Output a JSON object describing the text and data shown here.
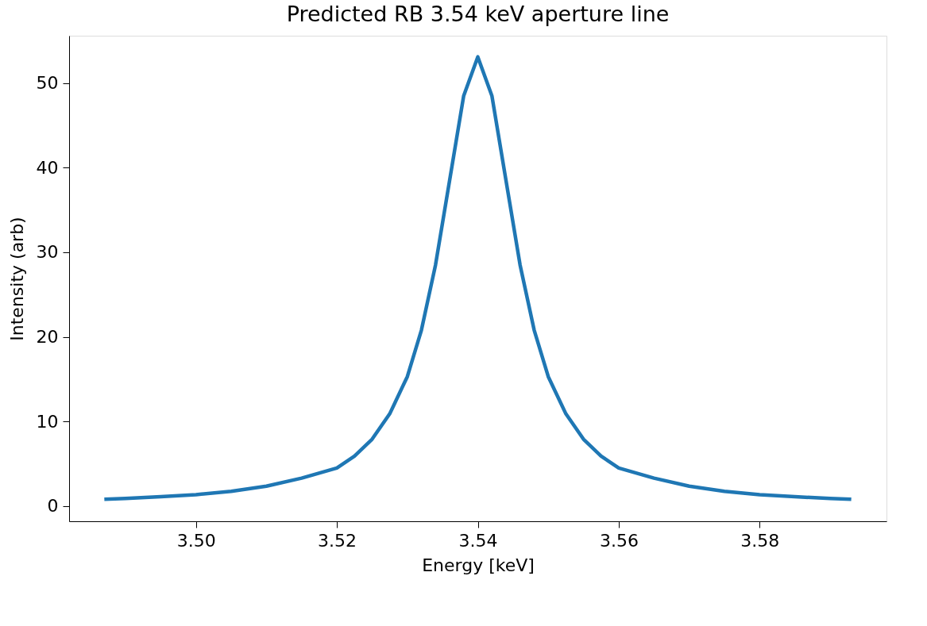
{
  "chart_data": {
    "type": "line",
    "title": "Predicted RB 3.54 keV aperture line",
    "xlabel": "Energy [keV]",
    "ylabel": "Intensity (arb)",
    "x": [
      3.487,
      3.49,
      3.495,
      3.5,
      3.505,
      3.51,
      3.515,
      3.52,
      3.5225,
      3.525,
      3.5275,
      3.53,
      3.532,
      3.534,
      3.536,
      3.538,
      3.54,
      3.542,
      3.544,
      3.546,
      3.548,
      3.55,
      3.5525,
      3.555,
      3.5575,
      3.56,
      3.565,
      3.57,
      3.575,
      3.58,
      3.585,
      3.59,
      3.593
    ],
    "series": [
      {
        "color": "#1f77b4",
        "values": [
          0.8,
          0.9,
          1.1,
          1.35,
          1.75,
          2.35,
          3.3,
          4.5,
          5.9,
          7.9,
          10.9,
          15.3,
          20.8,
          28.5,
          38.5,
          48.5,
          53.1,
          48.5,
          38.5,
          28.5,
          20.8,
          15.3,
          10.9,
          7.9,
          5.9,
          4.5,
          3.3,
          2.35,
          1.75,
          1.35,
          1.1,
          0.9,
          0.8
        ]
      }
    ],
    "xlim": [
      3.482,
      3.598
    ],
    "xticks": [
      {
        "value": 3.5,
        "label": "3.50"
      },
      {
        "value": 3.52,
        "label": "3.52"
      },
      {
        "value": 3.54,
        "label": "3.54"
      },
      {
        "value": 3.56,
        "label": "3.56"
      },
      {
        "value": 3.58,
        "label": "3.58"
      }
    ],
    "ylim": [
      -1.8,
      55.6
    ],
    "yticks": [
      0,
      10,
      20,
      30,
      40,
      50
    ],
    "grid": false,
    "marker": "none",
    "line_style": "solid"
  }
}
